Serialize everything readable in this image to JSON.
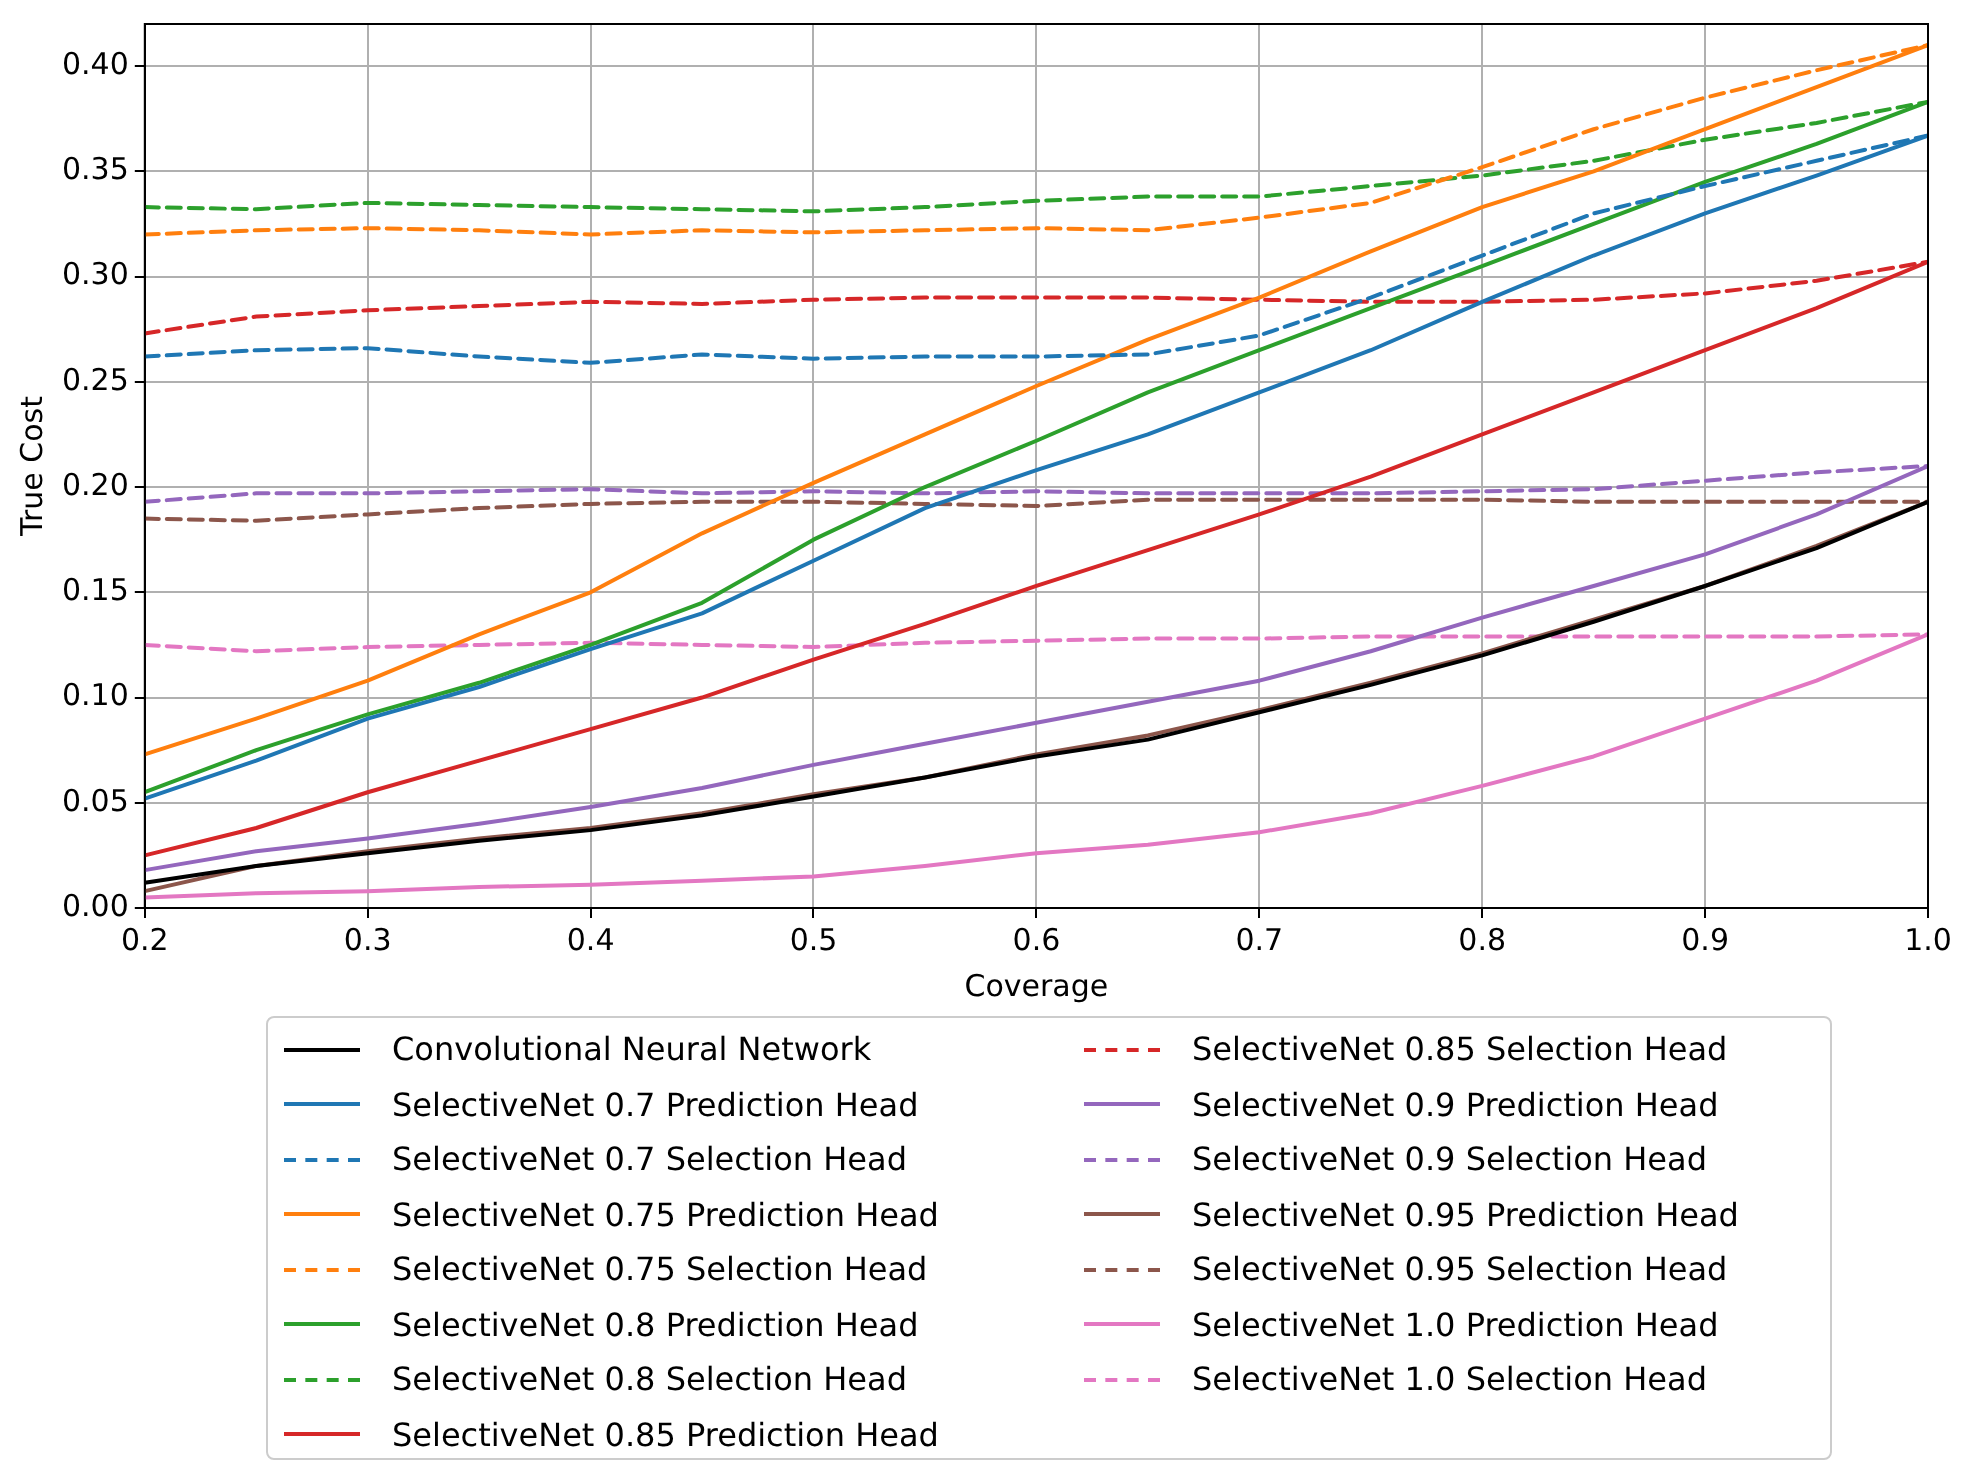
{
  "chart_data": {
    "type": "line",
    "xlabel": "Coverage",
    "ylabel": "True Cost",
    "grid": true,
    "legend": "bottom",
    "xlim": [
      0.2,
      1.0
    ],
    "ylim": [
      0,
      0.42
    ],
    "xticks": [
      0.2,
      0.3,
      0.4,
      0.5,
      0.6,
      0.7,
      0.8,
      0.9,
      {
        "value": 1.0,
        "label": "1.0"
      }
    ],
    "yticks": [
      {
        "value": 0,
        "label": "0.00"
      },
      {
        "value": 0.05,
        "label": "0.05"
      },
      {
        "value": 0.1,
        "label": "0.10"
      },
      {
        "value": 0.15,
        "label": "0.15"
      },
      {
        "value": 0.2,
        "label": "0.20"
      },
      {
        "value": 0.25,
        "label": "0.25"
      },
      {
        "value": 0.3,
        "label": "0.30"
      },
      {
        "value": 0.35,
        "label": "0.35"
      },
      {
        "value": 0.4,
        "label": "0.40"
      }
    ],
    "x": [
      0.2,
      0.25,
      0.3,
      0.35,
      0.4,
      0.45,
      0.5,
      0.55,
      0.6,
      0.65,
      0.7,
      0.75,
      0.8,
      0.85,
      0.9,
      0.95,
      1.0
    ],
    "series": [
      {
        "name": "Convolutional Neural Network",
        "color": "#000000",
        "line_style": "solid",
        "values": [
          0.012,
          0.02,
          0.026,
          0.032,
          0.037,
          0.044,
          0.053,
          0.062,
          0.072,
          0.08,
          0.093,
          0.106,
          0.12,
          0.136,
          0.153,
          0.171,
          0.193
        ]
      },
      {
        "name": "SelectiveNet 0.7 Prediction Head",
        "color": "#1f77b4",
        "line_style": "solid",
        "values": [
          0.052,
          0.07,
          0.09,
          0.105,
          0.123,
          0.14,
          0.165,
          0.19,
          0.208,
          0.225,
          0.245,
          0.265,
          0.288,
          0.31,
          0.33,
          0.348,
          0.367
        ]
      },
      {
        "name": "SelectiveNet 0.7 Selection Head",
        "color": "#1f77b4",
        "line_style": "dashed",
        "values": [
          0.262,
          0.265,
          0.266,
          0.262,
          0.259,
          0.263,
          0.261,
          0.262,
          0.262,
          0.263,
          0.272,
          0.29,
          0.31,
          0.33,
          0.343,
          0.355,
          0.367
        ]
      },
      {
        "name": "SelectiveNet 0.75 Prediction Head",
        "color": "#ff7f0e",
        "line_style": "solid",
        "values": [
          0.073,
          0.09,
          0.108,
          0.13,
          0.15,
          0.178,
          0.202,
          0.225,
          0.248,
          0.27,
          0.29,
          0.312,
          0.333,
          0.35,
          0.37,
          0.39,
          0.41
        ]
      },
      {
        "name": "SelectiveNet 0.75 Selection Head",
        "color": "#ff7f0e",
        "line_style": "dashed",
        "values": [
          0.32,
          0.322,
          0.323,
          0.322,
          0.32,
          0.322,
          0.321,
          0.322,
          0.323,
          0.322,
          0.328,
          0.335,
          0.352,
          0.37,
          0.385,
          0.398,
          0.41
        ]
      },
      {
        "name": "SelectiveNet 0.8 Prediction Head",
        "color": "#2ca02c",
        "line_style": "solid",
        "values": [
          0.055,
          0.075,
          0.092,
          0.107,
          0.125,
          0.145,
          0.175,
          0.2,
          0.222,
          0.245,
          0.265,
          0.285,
          0.305,
          0.325,
          0.345,
          0.363,
          0.383
        ]
      },
      {
        "name": "SelectiveNet 0.8 Selection Head",
        "color": "#2ca02c",
        "line_style": "dashed",
        "values": [
          0.333,
          0.332,
          0.335,
          0.334,
          0.333,
          0.332,
          0.331,
          0.333,
          0.336,
          0.338,
          0.338,
          0.343,
          0.348,
          0.355,
          0.365,
          0.373,
          0.383
        ]
      },
      {
        "name": "SelectiveNet 0.85 Prediction Head",
        "color": "#d62728",
        "line_style": "solid",
        "values": [
          0.025,
          0.038,
          0.055,
          0.07,
          0.085,
          0.1,
          0.118,
          0.135,
          0.153,
          0.17,
          0.187,
          0.205,
          0.225,
          0.245,
          0.265,
          0.285,
          0.307
        ]
      },
      {
        "name": "SelectiveNet 0.85 Selection Head",
        "color": "#d62728",
        "line_style": "dashed",
        "values": [
          0.273,
          0.281,
          0.284,
          0.286,
          0.288,
          0.287,
          0.289,
          0.29,
          0.29,
          0.29,
          0.289,
          0.288,
          0.288,
          0.289,
          0.292,
          0.298,
          0.307
        ]
      },
      {
        "name": "SelectiveNet 0.9 Prediction Head",
        "color": "#9467bd",
        "line_style": "solid",
        "values": [
          0.018,
          0.027,
          0.033,
          0.04,
          0.048,
          0.057,
          0.068,
          0.078,
          0.088,
          0.098,
          0.108,
          0.122,
          0.138,
          0.153,
          0.168,
          0.187,
          0.21
        ]
      },
      {
        "name": "SelectiveNet 0.9 Selection Head",
        "color": "#9467bd",
        "line_style": "dashed",
        "values": [
          0.193,
          0.197,
          0.197,
          0.198,
          0.199,
          0.197,
          0.198,
          0.197,
          0.198,
          0.197,
          0.197,
          0.197,
          0.198,
          0.199,
          0.203,
          0.207,
          0.21
        ]
      },
      {
        "name": "SelectiveNet 0.95 Prediction Head",
        "color": "#8c564b",
        "line_style": "solid",
        "values": [
          0.008,
          0.02,
          0.027,
          0.033,
          0.038,
          0.045,
          0.054,
          0.062,
          0.073,
          0.082,
          0.094,
          0.107,
          0.121,
          0.137,
          0.153,
          0.172,
          0.193
        ]
      },
      {
        "name": "SelectiveNet 0.95 Selection Head",
        "color": "#8c564b",
        "line_style": "dashed",
        "values": [
          0.185,
          0.184,
          0.187,
          0.19,
          0.192,
          0.193,
          0.193,
          0.192,
          0.191,
          0.194,
          0.194,
          0.194,
          0.194,
          0.193,
          0.193,
          0.193,
          0.193
        ]
      },
      {
        "name": "SelectiveNet 1.0 Prediction Head",
        "color": "#e377c2",
        "line_style": "solid",
        "values": [
          0.005,
          0.007,
          0.008,
          0.01,
          0.011,
          0.013,
          0.015,
          0.02,
          0.026,
          0.03,
          0.036,
          0.045,
          0.058,
          0.072,
          0.09,
          0.108,
          0.13
        ]
      },
      {
        "name": "SelectiveNet 1.0 Selection Head",
        "color": "#e377c2",
        "line_style": "dashed",
        "values": [
          0.125,
          0.122,
          0.124,
          0.125,
          0.126,
          0.125,
          0.124,
          0.126,
          0.127,
          0.128,
          0.128,
          0.129,
          0.129,
          0.129,
          0.129,
          0.129,
          0.13
        ]
      }
    ]
  }
}
